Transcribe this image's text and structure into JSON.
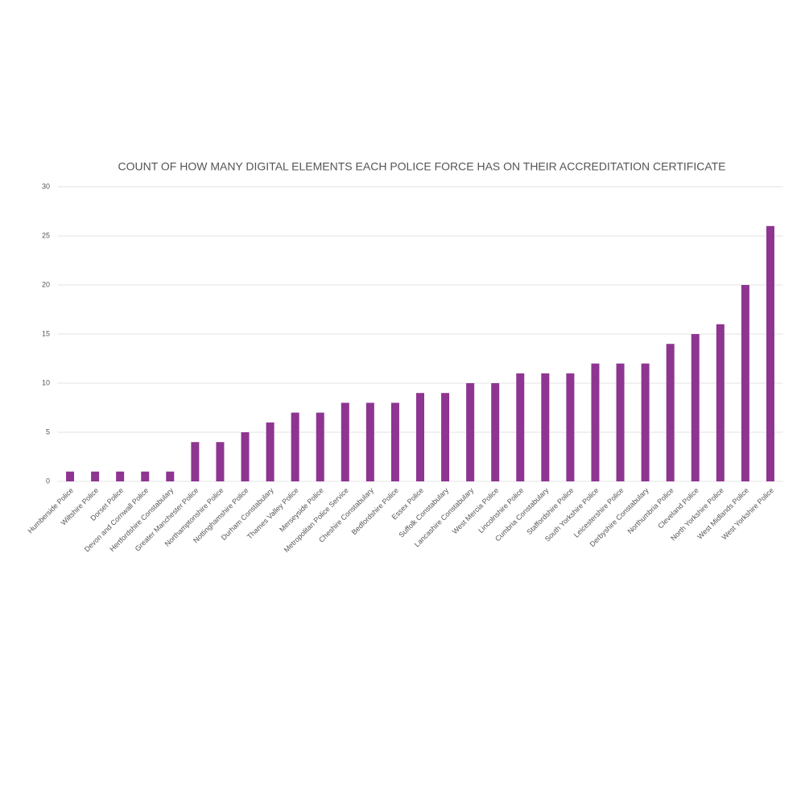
{
  "chart_data": {
    "type": "bar",
    "title": "COUNT OF HOW MANY DIGITAL ELEMENTS EACH POLICE FORCE HAS ON THEIR ACCREDITATION CERTIFICATE",
    "categories": [
      "Humberside Police",
      "Wiltshire Police",
      "Dorset Police",
      "Devon and Cornwall Police",
      "Hertfordshire Constabulary",
      "Greater Manchester Police",
      "Northamptonshire Police",
      "Nottinghamshire Police",
      "Durham Constabulary",
      "Thames Valley Police",
      "Merseyside Police",
      "Metropolitan Police Service",
      "Cheshire Constabulary",
      "Bedfordshire Police",
      "Essex Police",
      "Suffolk Constabulary",
      "Lancashire Constabulary",
      "West Mercia Police",
      "Lincolnshire Police",
      "Cumbria Constabulary",
      "Staffordshire Police",
      "South Yorkshire Police",
      "Leicestershire Police",
      "Derbyshire Constabulary",
      "Northumbria Police",
      "Cleveland Police",
      "North Yorkshire Police",
      "West Midlands Police",
      "West Yorkshire Police"
    ],
    "values": [
      1,
      1,
      1,
      1,
      1,
      4,
      4,
      5,
      6,
      7,
      7,
      8,
      8,
      8,
      9,
      9,
      10,
      10,
      11,
      11,
      11,
      12,
      12,
      12,
      14,
      15,
      16,
      20,
      26
    ],
    "color": "#8e3591",
    "ylim": [
      0,
      30
    ],
    "yticks": [
      0,
      5,
      10,
      15,
      20,
      25,
      30
    ],
    "grid": true
  }
}
